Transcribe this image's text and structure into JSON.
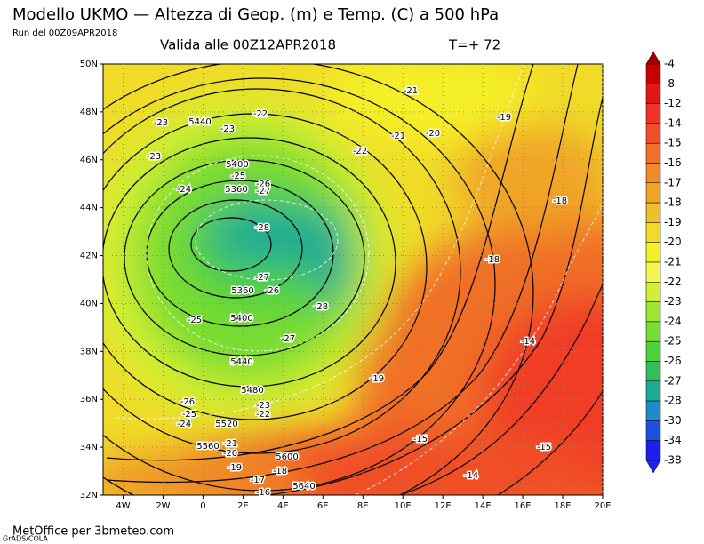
{
  "header": {
    "title": "Modello UKMO — Altezza di Geop. (m) e Temp. (C) a 500 hPa",
    "run": "Run del 00Z09APR2018",
    "valid": "Valida alle 00Z12APR2018",
    "step": "T=+ 72"
  },
  "axes": {
    "lat_labels": [
      "50N",
      "48N",
      "46N",
      "44N",
      "42N",
      "40N",
      "38N",
      "36N",
      "34N",
      "32N"
    ],
    "lon_labels": [
      "4W",
      "2W",
      "0",
      "2E",
      "4E",
      "6E",
      "8E",
      "10E",
      "12E",
      "14E",
      "16E",
      "18E",
      "20E"
    ]
  },
  "colorbar": {
    "levels": [
      {
        "label": "-4",
        "color": "#a00000"
      },
      {
        "label": "-8",
        "color": "#c80000"
      },
      {
        "label": "-12",
        "color": "#e61414"
      },
      {
        "label": "-14",
        "color": "#f03228"
      },
      {
        "label": "-15",
        "color": "#f05028"
      },
      {
        "label": "-16",
        "color": "#f07028"
      },
      {
        "label": "-17",
        "color": "#f08c28"
      },
      {
        "label": "-18",
        "color": "#f0a528"
      },
      {
        "label": "-19",
        "color": "#f0c028"
      },
      {
        "label": "-20",
        "color": "#f0dc28"
      },
      {
        "label": "-21",
        "color": "#f5f028"
      },
      {
        "label": "-22",
        "color": "#f5f550"
      },
      {
        "label": "-23",
        "color": "#d2f032"
      },
      {
        "label": "-24",
        "color": "#a0e632"
      },
      {
        "label": "-25",
        "color": "#78dc32"
      },
      {
        "label": "-26",
        "color": "#50d23c"
      },
      {
        "label": "-27",
        "color": "#32be5a"
      },
      {
        "label": "-28",
        "color": "#1eaa96"
      },
      {
        "label": "-30",
        "color": "#1e8cc8"
      },
      {
        "label": "-34",
        "color": "#1e50dc"
      },
      {
        "label": "-38",
        "color": "#1e1ef0"
      }
    ]
  },
  "contour_labels": [
    "-21",
    "-22",
    "-23",
    "5440",
    "-23",
    "-19",
    "-21",
    "-20",
    "-22",
    "-23",
    "5400",
    "-25",
    "-26",
    "-24",
    "5360",
    "-27",
    "-18",
    "-28",
    "-18",
    "-27",
    "5360",
    "-26",
    "-28",
    "-25",
    "5400",
    "-27",
    "-14",
    "5440",
    "-19",
    "5480",
    "-26",
    "-23",
    "-25",
    "-22",
    "-24",
    "5520",
    "-15",
    "5560",
    "-21",
    "-20",
    "-15",
    "5600",
    "-19",
    "-18",
    "-14",
    "-17",
    "5640",
    "-16"
  ],
  "footer": {
    "credit": "MetOffice per 3bmeteo.com",
    "software": "GrADS/COLA"
  }
}
